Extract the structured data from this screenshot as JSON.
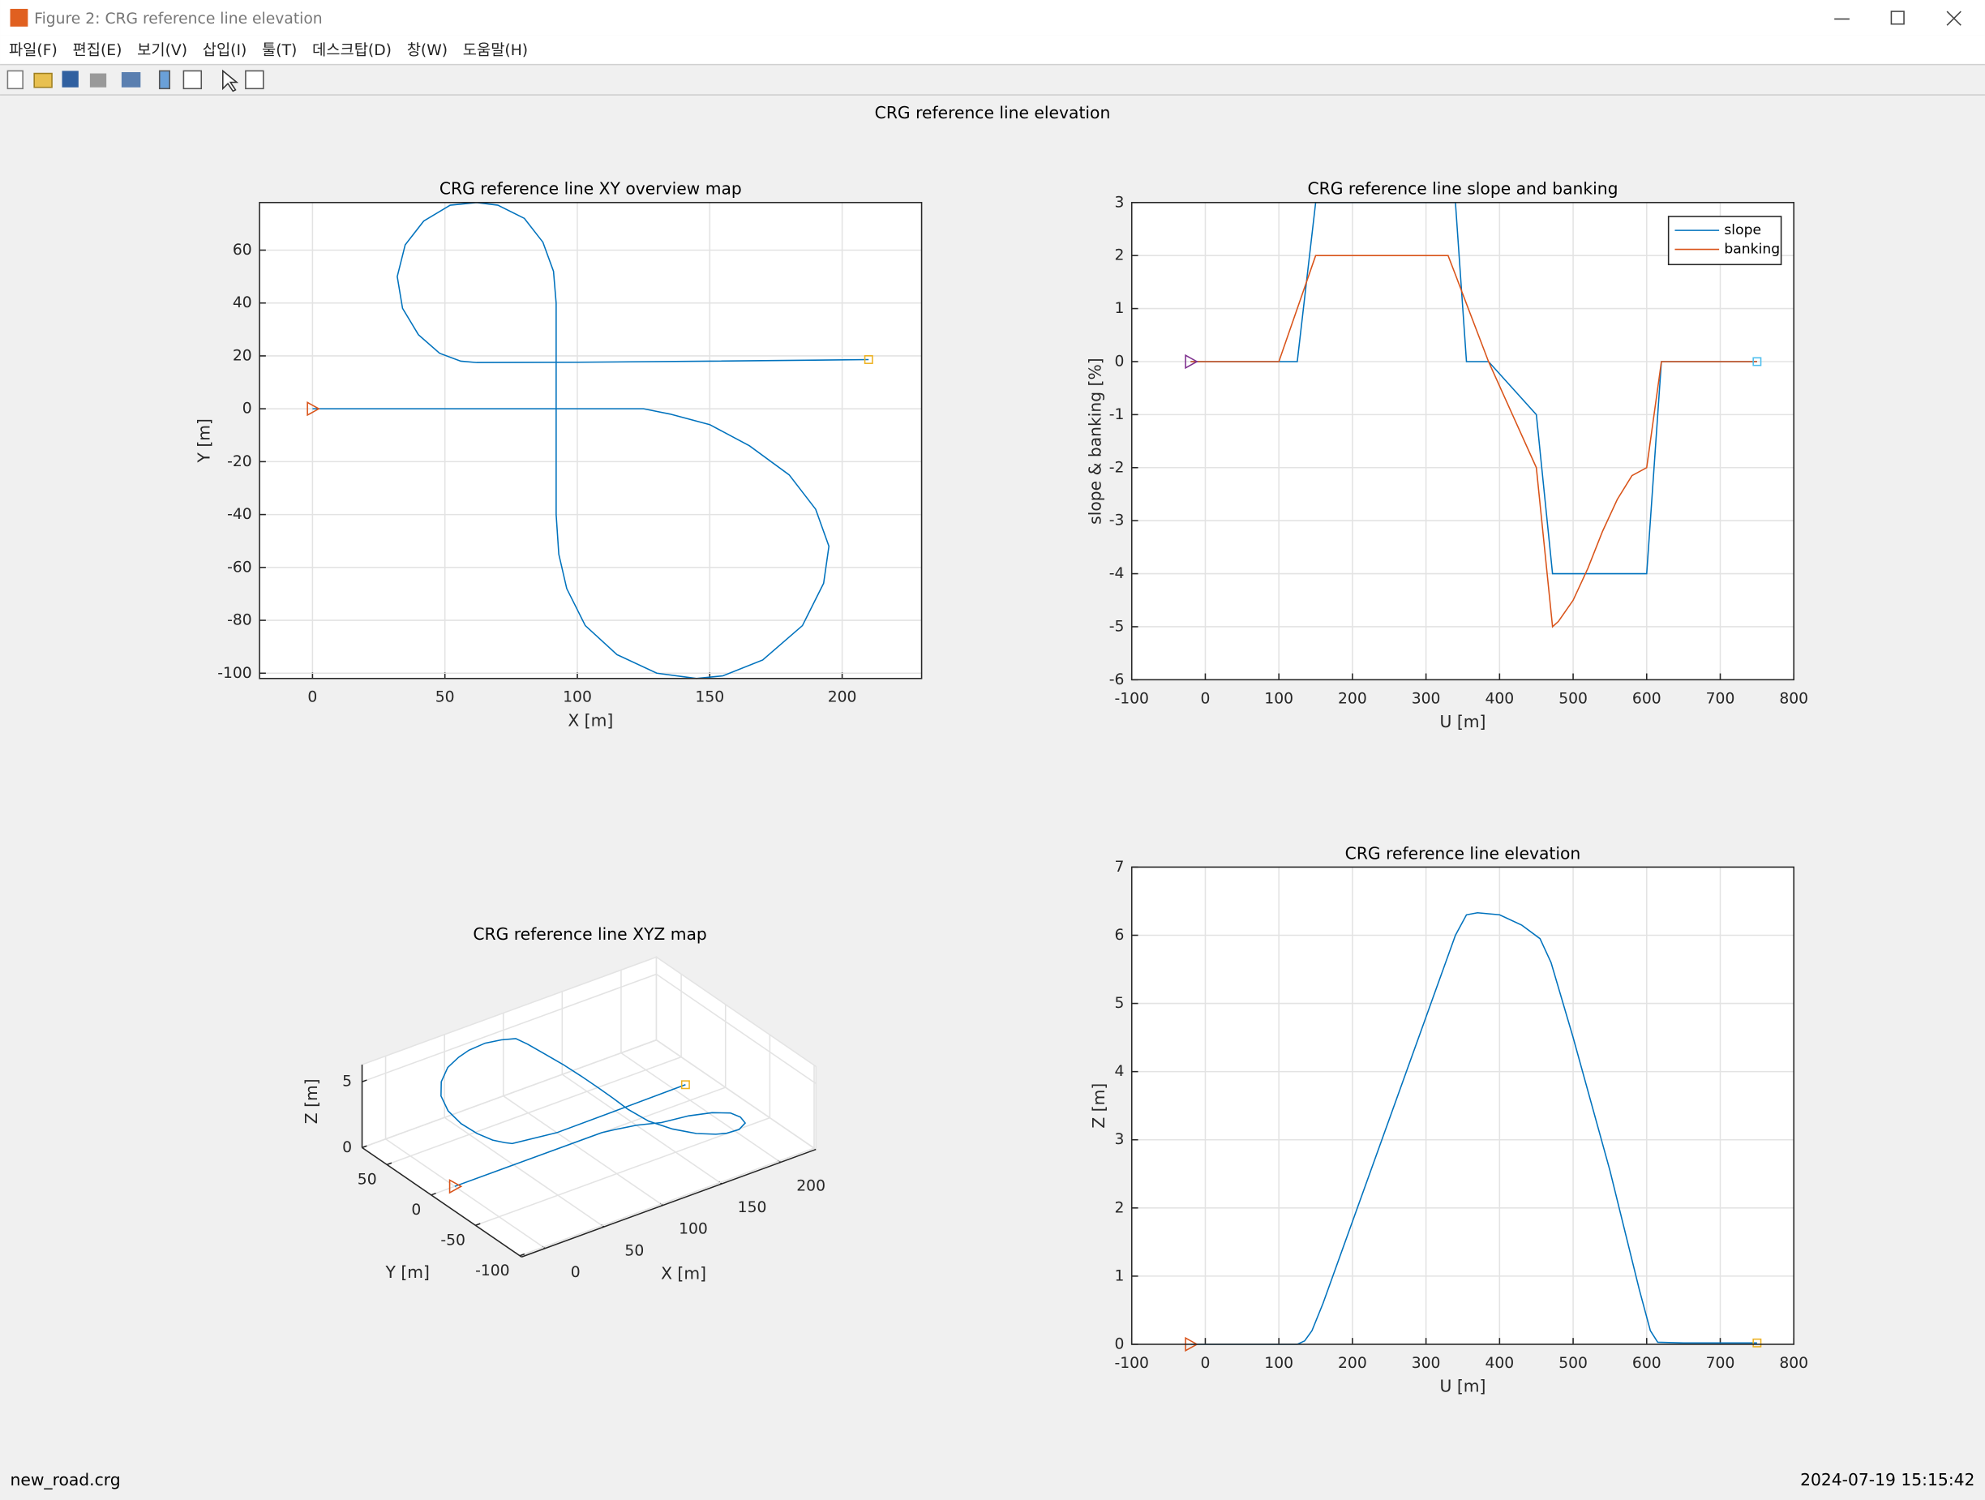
{
  "window": {
    "title": "Figure 2: CRG reference line elevation",
    "menu": [
      "파일(F)",
      "편집(E)",
      "보기(V)",
      "삽입(I)",
      "툴(T)",
      "데스크탑(D)",
      "창(W)",
      "도움말(H)"
    ]
  },
  "figure_title": "CRG reference line elevation",
  "chart_data": [
    {
      "type": "line",
      "title": "CRG reference line XY overview map",
      "xlabel": "X [m]",
      "ylabel": "Y [m]",
      "x": [
        0,
        50,
        100,
        125,
        135,
        150,
        165,
        180,
        190,
        195,
        193,
        185,
        170,
        155,
        145,
        130,
        115,
        103,
        96,
        93,
        92,
        92,
        92,
        92,
        92,
        91,
        87,
        80,
        70,
        62,
        52,
        42,
        35,
        32,
        34,
        40,
        48,
        56,
        62,
        100,
        150,
        210
      ],
      "values": [
        0,
        0,
        0,
        0,
        -2,
        -6,
        -14,
        -25,
        -38,
        -52,
        -66,
        -82,
        -95,
        -101,
        -102,
        -100,
        -93,
        -82,
        -68,
        -55,
        -40,
        -20,
        0,
        20,
        40,
        52,
        63,
        72,
        77,
        78,
        77,
        71,
        62,
        50,
        38,
        28,
        21,
        18,
        17.5,
        17.6,
        18,
        18.6
      ],
      "color": "#0072bd",
      "markers": {
        "start": "#d95319",
        "end": "#edb120"
      },
      "xlim": [
        -20,
        230
      ],
      "ylim": [
        -102,
        78
      ],
      "xticks": [
        0,
        50,
        100,
        150,
        200
      ],
      "yticks": [
        -100,
        -80,
        -60,
        -40,
        -20,
        0,
        20,
        40,
        60
      ],
      "grid": true
    },
    {
      "type": "line",
      "title": "CRG reference line slope and banking",
      "xlabel": "U [m]",
      "ylabel": "slope & banking [%]",
      "x": [
        -20,
        100,
        125,
        150,
        330,
        340,
        355,
        385,
        450,
        472,
        480,
        500,
        520,
        540,
        560,
        580,
        600,
        620,
        750
      ],
      "series": [
        {
          "name": "slope",
          "color": "#0072bd",
          "values": [
            0,
            0,
            0,
            3,
            3,
            3,
            0,
            0,
            -1,
            -4,
            -4,
            -4,
            -4,
            -4,
            -4,
            -4,
            -4,
            0,
            0
          ]
        },
        {
          "name": "banking",
          "color": "#d95319",
          "values": [
            0,
            0,
            1,
            2,
            2,
            1.64,
            1.09,
            0,
            -2,
            -5,
            -4.9,
            -4.5,
            -3.9,
            -3.2,
            -2.6,
            -2.15,
            -2,
            0,
            0
          ]
        }
      ],
      "markers": {
        "start": "#7e2f8e",
        "end": "#4dbeee"
      },
      "legend": "northeast",
      "xlim": [
        -100,
        800
      ],
      "ylim": [
        -6,
        3
      ],
      "xticks": [
        -100,
        0,
        100,
        200,
        300,
        400,
        500,
        600,
        700,
        800
      ],
      "yticks": [
        -6,
        -5,
        -4,
        -3,
        -2,
        -1,
        0,
        1,
        2,
        3
      ],
      "grid": true
    },
    {
      "type": "line3d",
      "title": "CRG reference line XYZ map",
      "xlabel": "X [m]",
      "ylabel": "Y [m]",
      "zlabel": "Z [m]",
      "x": [
        0,
        50,
        100,
        125,
        135,
        150,
        165,
        180,
        190,
        195,
        193,
        185,
        170,
        155,
        145,
        130,
        115,
        103,
        96,
        93,
        92,
        92,
        92,
        92,
        92,
        91,
        87,
        80,
        70,
        62,
        52,
        42,
        35,
        32,
        34,
        40,
        48,
        56,
        62,
        100,
        150,
        210
      ],
      "y": [
        0,
        0,
        0,
        0,
        -2,
        -6,
        -14,
        -25,
        -38,
        -52,
        -66,
        -82,
        -95,
        -101,
        -102,
        -100,
        -93,
        -82,
        -68,
        -55,
        -40,
        -20,
        0,
        20,
        40,
        52,
        63,
        72,
        77,
        78,
        77,
        71,
        62,
        50,
        38,
        28,
        21,
        18,
        17.5,
        17.6,
        18,
        18.6
      ],
      "z": [
        0,
        0,
        0,
        0,
        0,
        0.02,
        0.1,
        0.63,
        1.14,
        1.6,
        2,
        2.55,
        3.15,
        3.63,
        3.93,
        4.38,
        4.89,
        5.37,
        5.85,
        6.2,
        6.32,
        6.31,
        6.25,
        6.1,
        5.95,
        5.85,
        5.38,
        4.94,
        4.5,
        4.18,
        3.78,
        3.3,
        2.86,
        2.38,
        1.9,
        1.42,
        0.98,
        0.66,
        0.42,
        0,
        0,
        0
      ],
      "color": "#0072bd",
      "markers": {
        "start": "#d95319",
        "end": "#edb120"
      },
      "xlim": [
        -20,
        230
      ],
      "ylim": [
        -102,
        78
      ],
      "zlim": [
        0,
        6.3
      ],
      "xticks": [
        0,
        50,
        100,
        150,
        200
      ],
      "yticks": [
        -100,
        -50,
        0,
        50
      ],
      "zticks": [
        0,
        5
      ],
      "grid": true
    },
    {
      "type": "line",
      "title": "CRG reference line elevation",
      "xlabel": "U [m]",
      "ylabel": "Z [m]",
      "x": [
        -20,
        100,
        125,
        135,
        145,
        160,
        200,
        250,
        300,
        340,
        355,
        370,
        400,
        430,
        455,
        470,
        500,
        550,
        590,
        605,
        615,
        650,
        750
      ],
      "values": [
        0,
        0,
        0,
        0.05,
        0.2,
        0.6,
        1.8,
        3.3,
        4.8,
        6,
        6.3,
        6.33,
        6.3,
        6.15,
        5.95,
        5.6,
        4.5,
        2.55,
        0.8,
        0.2,
        0.03,
        0.02,
        0.02
      ],
      "color": "#0072bd",
      "markers": {
        "start": "#d95319",
        "end": "#edb120"
      },
      "xlim": [
        -100,
        800
      ],
      "ylim": [
        0,
        7
      ],
      "xticks": [
        -100,
        0,
        100,
        200,
        300,
        400,
        500,
        600,
        700,
        800
      ],
      "yticks": [
        0,
        1,
        2,
        3,
        4,
        5,
        6,
        7
      ],
      "grid": true
    }
  ],
  "status": {
    "left": "new_road.crg",
    "right": "2024-07-19 15:15:42"
  }
}
